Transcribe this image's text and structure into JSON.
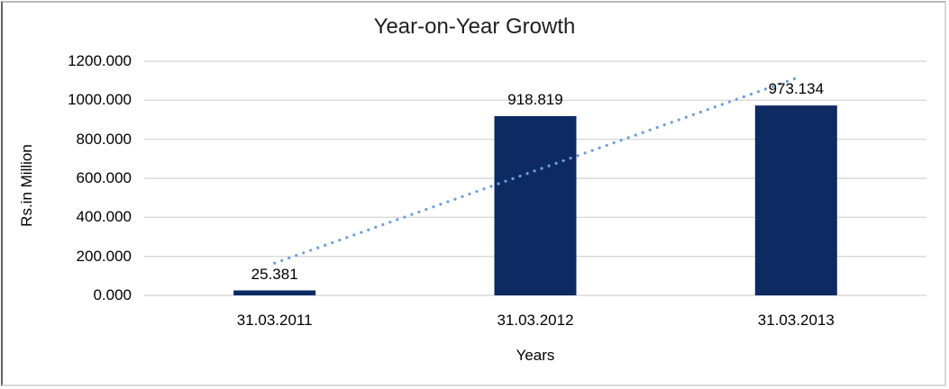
{
  "chart_data": {
    "type": "bar",
    "title": "Year-on-Year Growth",
    "xlabel": "Years",
    "ylabel": "Rs.in Million",
    "categories": [
      "31.03.2011",
      "31.03.2012",
      "31.03.2013"
    ],
    "values": [
      25.381,
      918.819,
      973.134
    ],
    "value_labels": [
      "25.381",
      "918.819",
      "973.134"
    ],
    "ylim": [
      0,
      1200
    ],
    "ytick_step": 200,
    "ytick_labels": [
      "0.000",
      "200.000",
      "400.000",
      "600.000",
      "800.000",
      "1000.000",
      "1200.000"
    ],
    "grid": true,
    "legend": "none",
    "trendline": {
      "type": "linear",
      "style": "dotted",
      "endpoint_values": [
        165,
        1113
      ]
    },
    "colors": {
      "bar": "#0d2a63",
      "trendline": "#6f9fd9",
      "gridline": "#d9d9d9",
      "text": "#000000"
    }
  }
}
